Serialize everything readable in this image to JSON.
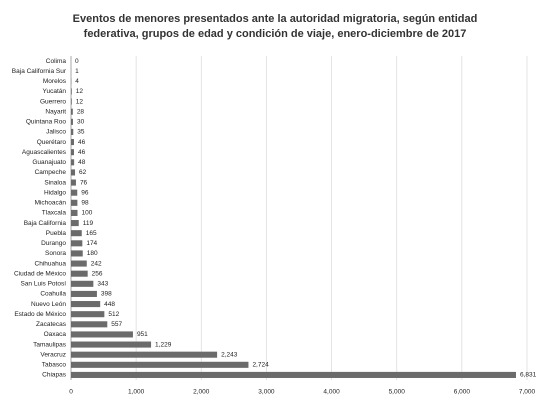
{
  "chart_data": {
    "type": "bar",
    "orientation": "horizontal",
    "title": "Eventos de menores presentados ante la autoridad migratoria, según entidad federativa, grupos de edad y condición de viaje, enero-diciembre de 2017",
    "categories": [
      "Colima",
      "Baja California Sur",
      "Morelos",
      "Yucatán",
      "Guerrero",
      "Nayarit",
      "Quintana Roo",
      "Jalisco",
      "Querétaro",
      "Aguascalientes",
      "Guanajuato",
      "Campeche",
      "Sinaloa",
      "Hidalgo",
      "Michoacán",
      "Tlaxcala",
      "Baja California",
      "Puebla",
      "Durango",
      "Sonora",
      "Chihuahua",
      "Ciudad de México",
      "San Luis Potosí",
      "Coahuila",
      "Nuevo León",
      "Estado de México",
      "Zacatecas",
      "Oaxaca",
      "Tamaulipas",
      "Veracruz",
      "Tabasco",
      "Chiapas"
    ],
    "values": [
      0,
      1,
      4,
      12,
      12,
      28,
      30,
      35,
      46,
      46,
      48,
      62,
      76,
      96,
      98,
      100,
      119,
      165,
      174,
      180,
      242,
      256,
      343,
      398,
      448,
      512,
      557,
      951,
      1229,
      2243,
      2724,
      6831
    ],
    "value_labels": [
      "0",
      "1",
      "4",
      "12",
      "12",
      "28",
      "30",
      "35",
      "46",
      "46",
      "48",
      "62",
      "76",
      "96",
      "98",
      "100",
      "119",
      "165",
      "174",
      "180",
      "242",
      "256",
      "343",
      "398",
      "448",
      "512",
      "557",
      "951",
      "1,229",
      "2,243",
      "2,724",
      "6,831"
    ],
    "color": "#6b6b6b",
    "xlim": [
      0,
      7000
    ],
    "xticks": [
      0,
      {
        "value": 1000,
        "label": "1,000"
      },
      {
        "value": 2000,
        "label": "2,000"
      },
      {
        "value": 3000,
        "label": "3,000"
      },
      {
        "value": 4000,
        "label": "4,000"
      },
      {
        "value": 5000,
        "label": "5,000"
      },
      {
        "value": 6000,
        "label": "6,000"
      },
      {
        "value": 7000,
        "label": "7,000"
      }
    ],
    "grid": true
  }
}
